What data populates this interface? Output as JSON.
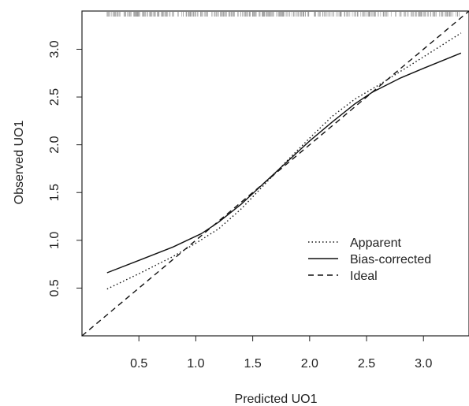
{
  "chart_data": {
    "type": "line",
    "xlabel": "Predicted UO1",
    "ylabel": "Observed UO1",
    "xlim": [
      0.0,
      3.4
    ],
    "ylim": [
      0.0,
      3.4
    ],
    "x_ticks": [
      "0.5",
      "1.0",
      "1.5",
      "2.0",
      "2.5",
      "3.0"
    ],
    "y_ticks": [
      "0.5",
      "1.0",
      "1.5",
      "2.0",
      "2.5",
      "3.0"
    ],
    "grid": false,
    "legend": {
      "placement": "bottom-right",
      "entries": [
        "Apparent",
        "Bias-corrected",
        "Ideal"
      ]
    },
    "series": [
      {
        "name": "Apparent",
        "style": "dotted",
        "x": [
          0.22,
          0.5,
          0.8,
          1.0,
          1.2,
          1.4,
          1.6,
          1.8,
          2.0,
          2.2,
          2.4,
          2.6,
          2.8,
          3.0,
          3.33
        ],
        "y": [
          0.49,
          0.65,
          0.83,
          0.97,
          1.12,
          1.33,
          1.58,
          1.83,
          2.07,
          2.3,
          2.48,
          2.62,
          2.77,
          2.92,
          3.17
        ]
      },
      {
        "name": "Bias-corrected",
        "style": "solid",
        "x": [
          0.22,
          0.5,
          0.8,
          1.05,
          1.2,
          1.4,
          1.6,
          1.8,
          2.0,
          2.2,
          2.4,
          2.55,
          2.8,
          3.0,
          3.33
        ],
        "y": [
          0.66,
          0.79,
          0.93,
          1.07,
          1.19,
          1.38,
          1.6,
          1.82,
          2.04,
          2.24,
          2.43,
          2.55,
          2.7,
          2.8,
          2.96
        ]
      },
      {
        "name": "Ideal",
        "style": "dashed",
        "x": [
          0.0,
          3.4
        ],
        "y": [
          0.0,
          3.4
        ]
      }
    ],
    "rug_ticks": "top"
  }
}
